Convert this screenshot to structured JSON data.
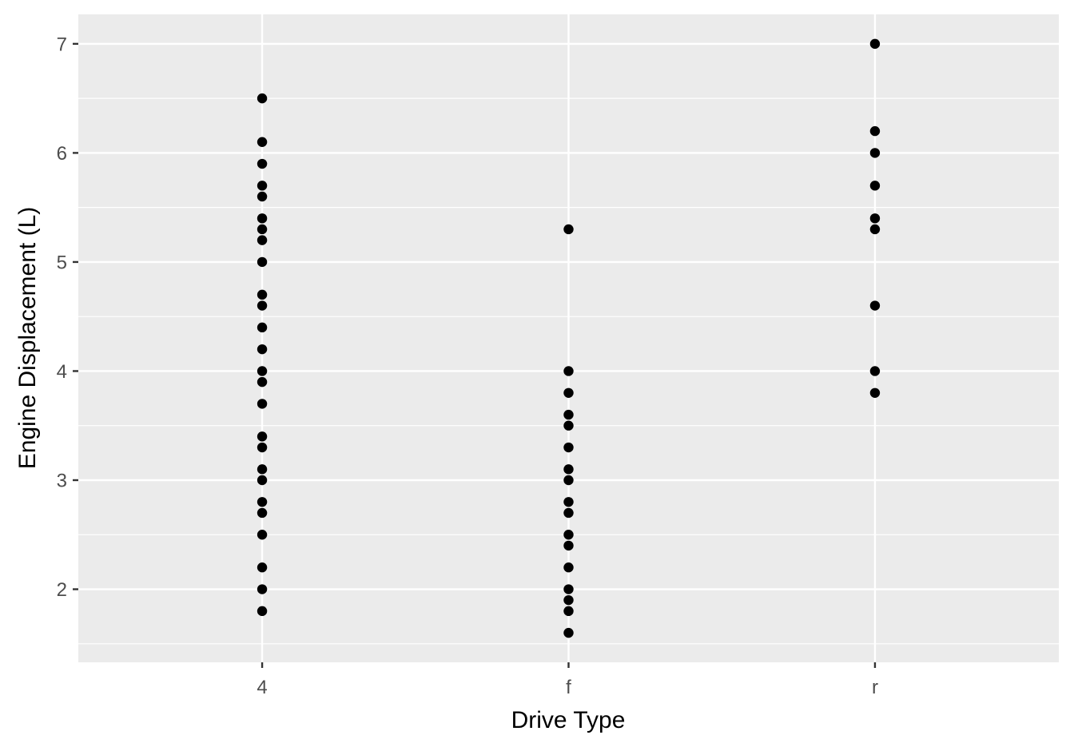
{
  "chart_data": {
    "type": "scatter",
    "title": "",
    "xlabel": "Drive Type",
    "ylabel": "Engine Displacement (L)",
    "categories": [
      "4",
      "f",
      "r"
    ],
    "ylim": [
      1.33,
      7.27
    ],
    "y_ticks": [
      2,
      3,
      4,
      5,
      6,
      7
    ],
    "grid": true,
    "point_color": "#000000",
    "panel_color": "#ebebeb",
    "grid_color": "#ffffff",
    "series": [
      {
        "category": "4",
        "values": [
          1.8,
          2.0,
          2.2,
          2.5,
          2.7,
          2.8,
          3.0,
          3.1,
          3.3,
          3.4,
          3.7,
          3.9,
          4.0,
          4.2,
          4.4,
          4.6,
          4.7,
          5.0,
          5.2,
          5.3,
          5.4,
          5.6,
          5.7,
          5.9,
          6.1,
          6.5
        ]
      },
      {
        "category": "f",
        "values": [
          1.6,
          1.8,
          1.9,
          2.0,
          2.2,
          2.4,
          2.5,
          2.7,
          2.8,
          3.0,
          3.1,
          3.3,
          3.5,
          3.6,
          3.8,
          4.0,
          5.3
        ]
      },
      {
        "category": "r",
        "values": [
          3.8,
          4.0,
          4.6,
          5.3,
          5.4,
          5.7,
          6.0,
          6.2,
          7.0
        ]
      }
    ]
  }
}
